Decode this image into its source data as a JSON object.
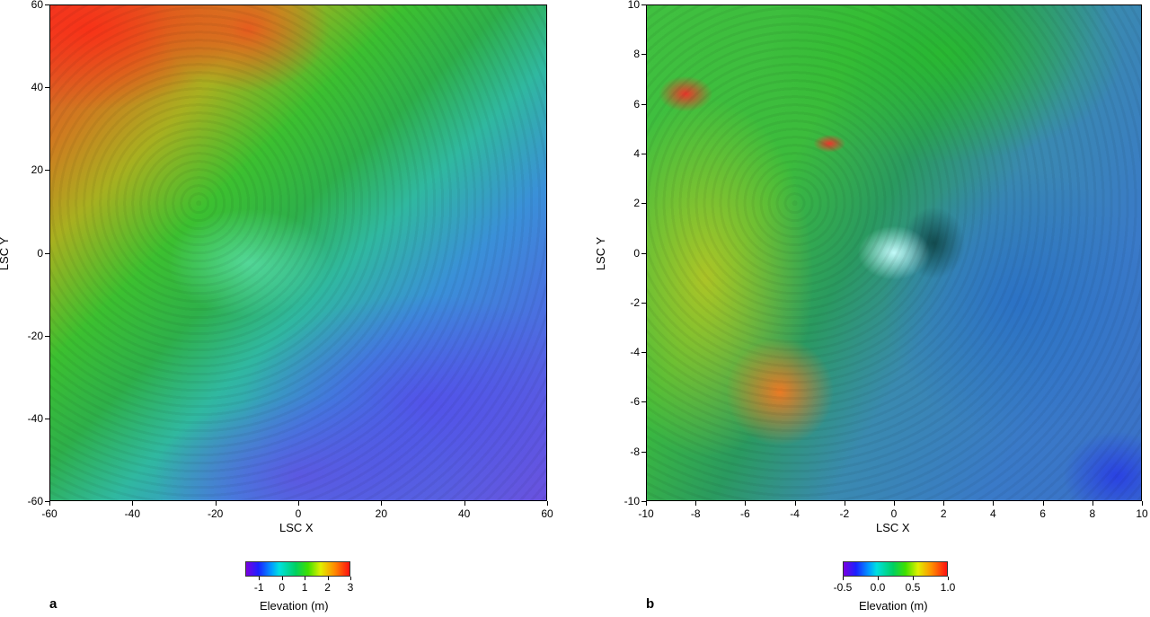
{
  "chart_data": [
    {
      "type": "heatmap",
      "panel_label": "a",
      "xlabel": "LSC X",
      "ylabel": "LSC Y",
      "xlim": [
        -60,
        60
      ],
      "ylim": [
        -60,
        60
      ],
      "xticks": [
        "-60",
        "-40",
        "-20",
        "0",
        "20",
        "40",
        "60"
      ],
      "yticks": [
        "60",
        "40",
        "20",
        "0",
        "-20",
        "-40",
        "-60"
      ],
      "colorbar": {
        "label": "Elevation (m)",
        "range": [
          -1.6,
          3
        ],
        "ticks": [
          "-1",
          "0",
          "1",
          "2",
          "3"
        ],
        "tick_values": [
          -1,
          0,
          1,
          2,
          3
        ],
        "colormap": "rainbow (purple-blue-cyan-green-yellow-orange-red)"
      },
      "description_trend": "high (red) at upper-left, low (blue/purple) at lower-right, with contour lines"
    },
    {
      "type": "heatmap",
      "panel_label": "b",
      "xlabel": "LSC X",
      "ylabel": "LSC Y",
      "xlim": [
        -10,
        10
      ],
      "ylim": [
        -10,
        10
      ],
      "xticks": [
        "-10",
        "-8",
        "-6",
        "-4",
        "-2",
        "0",
        "2",
        "4",
        "6",
        "8",
        "10"
      ],
      "yticks": [
        "10",
        "8",
        "6",
        "4",
        "2",
        "0",
        "-2",
        "-4",
        "-6",
        "-8",
        "-10"
      ],
      "colorbar": {
        "label": "Elevation (m)",
        "range": [
          -0.5,
          1.0
        ],
        "ticks": [
          "-0.5",
          "0.0",
          "0.5",
          "1.0"
        ],
        "tick_values": [
          -0.5,
          0,
          0.5,
          1.0
        ],
        "colormap": "rainbow (purple-blue-cyan-green-yellow-orange-red)"
      }
    }
  ]
}
